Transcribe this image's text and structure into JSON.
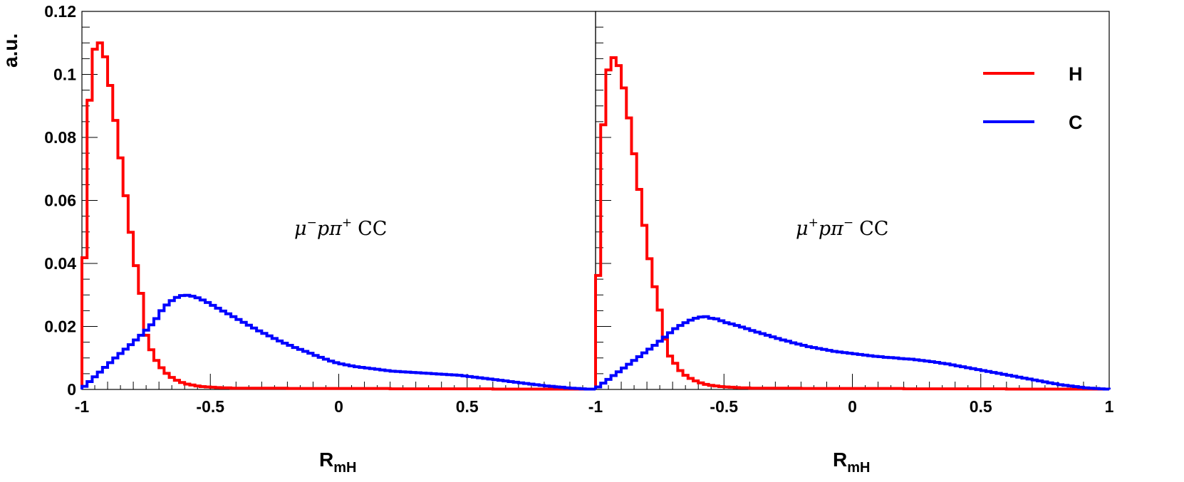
{
  "chart_data": [
    {
      "type": "histogram",
      "panel": "left",
      "annotation": {
        "mu": "μ",
        "mu_sup": "−",
        "p": "p",
        "pi": "π",
        "pi_sup": "+",
        "cc": "CC"
      },
      "xlabel": {
        "main": "R",
        "sub": "mH"
      },
      "ylabel": "a.u.",
      "xlim": [
        -1,
        1
      ],
      "ylim": [
        0,
        0.12
      ],
      "bins": 100,
      "xticks": [
        "-1",
        "-0.5",
        "0",
        "0.5"
      ],
      "yticks": [
        "0",
        "0.02",
        "0.04",
        "0.06",
        "0.08",
        "0.1",
        "0.12"
      ],
      "series": [
        {
          "name": "H",
          "color": "#ff0000",
          "values": [
            0.0418,
            0.0918,
            0.108,
            0.11,
            0.1056,
            0.0965,
            0.0854,
            0.0735,
            0.0615,
            0.0499,
            0.0393,
            0.0305,
            0.0172,
            0.0126,
            0.0092,
            0.0069,
            0.0051,
            0.0038,
            0.0029,
            0.0022,
            0.0017,
            0.0014,
            0.0011,
            0.0009,
            0.0008,
            0.0007,
            0.0006,
            0.0005,
            0.0005,
            0.0004,
            0.0004,
            0.0004,
            0.0004,
            0.0004,
            0.0004,
            0.0004,
            0.0004,
            0.0004,
            0.0004,
            0.0004,
            0.0003,
            0.0003,
            0.0003,
            0.0003,
            0.0003,
            0.0003,
            0.0003,
            0.0003,
            0.0003,
            0.0003,
            0.0003,
            0.0003,
            0.0003,
            0.0003,
            0.0003,
            0.0003,
            0.0003,
            0.0003,
            0.0003,
            0.0003,
            0.0002,
            0.0002,
            0.0002,
            0.0002,
            0.0002,
            0.0002,
            0.0002,
            0.0002,
            0.0002,
            0.0002,
            0.0002,
            0.0002,
            0.0002,
            0.0002,
            0.0002,
            0.0002,
            0.0002,
            0.0002,
            0.0002,
            0.0002,
            0.0001,
            0.0001,
            0.0001,
            0.0001,
            0.0001,
            0.0001,
            0.0001,
            0.0001,
            0.0001,
            0.0001,
            0.0001,
            0.0001,
            0.0001,
            0.0001,
            0.0001,
            0.0001,
            0.0001,
            0.0001,
            0.0001,
            0.0001
          ]
        },
        {
          "name": "C",
          "color": "#0000ff",
          "values": [
            0.001,
            0.0025,
            0.004,
            0.0055,
            0.007,
            0.0085,
            0.01,
            0.0114,
            0.0128,
            0.0142,
            0.0157,
            0.0172,
            0.0188,
            0.0205,
            0.0225,
            0.025,
            0.0268,
            0.0282,
            0.0292,
            0.0298,
            0.0299,
            0.0296,
            0.0291,
            0.0284,
            0.0276,
            0.0267,
            0.0258,
            0.0249,
            0.024,
            0.0231,
            0.0222,
            0.0213,
            0.0204,
            0.0195,
            0.0186,
            0.0178,
            0.017,
            0.0162,
            0.0154,
            0.0147,
            0.014,
            0.0133,
            0.0127,
            0.0121,
            0.0115,
            0.0108,
            0.0102,
            0.0096,
            0.009,
            0.0085,
            0.0081,
            0.0078,
            0.0075,
            0.0072,
            0.007,
            0.0068,
            0.0066,
            0.0064,
            0.0062,
            0.006,
            0.0058,
            0.0057,
            0.0056,
            0.0055,
            0.0054,
            0.0053,
            0.0052,
            0.0051,
            0.005,
            0.0049,
            0.0048,
            0.0047,
            0.0046,
            0.0045,
            0.0043,
            0.0041,
            0.0039,
            0.0037,
            0.0035,
            0.0033,
            0.0031,
            0.0029,
            0.0027,
            0.0025,
            0.0023,
            0.0021,
            0.0019,
            0.0017,
            0.0015,
            0.0013,
            0.0011,
            0.001,
            0.0008,
            0.0007,
            0.0005,
            0.0004,
            0.0003,
            0.0002,
            0.0001,
            0.0001
          ]
        }
      ]
    },
    {
      "type": "histogram",
      "panel": "right",
      "annotation": {
        "mu": "μ",
        "mu_sup": "+",
        "p": "p",
        "pi": "π",
        "pi_sup": "−",
        "cc": "CC"
      },
      "xlabel": {
        "main": "R",
        "sub": "mH"
      },
      "xlim": [
        -1,
        1
      ],
      "ylim": [
        0,
        0.12
      ],
      "bins": 100,
      "xticks": [
        "-1",
        "-0.5",
        "0",
        "0.5",
        "1"
      ],
      "legend": {
        "placement": "top-right",
        "entries": [
          "H",
          "C"
        ]
      },
      "series": [
        {
          "name": "H",
          "color": "#ff0000",
          "values": [
            0.0362,
            0.084,
            0.1014,
            0.1053,
            0.1028,
            0.0957,
            0.0862,
            0.0748,
            0.0635,
            0.0521,
            0.0415,
            0.0326,
            0.0252,
            0.016,
            0.0106,
            0.0083,
            0.006,
            0.0045,
            0.0035,
            0.0027,
            0.0021,
            0.0016,
            0.0013,
            0.0011,
            0.0009,
            0.0008,
            0.0007,
            0.0006,
            0.0005,
            0.0005,
            0.0004,
            0.0004,
            0.0004,
            0.0004,
            0.0004,
            0.0004,
            0.0004,
            0.0004,
            0.0004,
            0.0004,
            0.0003,
            0.0003,
            0.0003,
            0.0003,
            0.0003,
            0.0003,
            0.0003,
            0.0003,
            0.0003,
            0.0003,
            0.0003,
            0.0003,
            0.0003,
            0.0003,
            0.0003,
            0.0003,
            0.0003,
            0.0003,
            0.0003,
            0.0003,
            0.0002,
            0.0002,
            0.0002,
            0.0002,
            0.0002,
            0.0002,
            0.0002,
            0.0002,
            0.0002,
            0.0002,
            0.0002,
            0.0002,
            0.0002,
            0.0002,
            0.0002,
            0.0002,
            0.0002,
            0.0002,
            0.0002,
            0.0002,
            0.0001,
            0.0001,
            0.0001,
            0.0001,
            0.0001,
            0.0001,
            0.0001,
            0.0001,
            0.0001,
            0.0001,
            0.0001,
            0.0001,
            0.0001,
            0.0001,
            0.0001,
            0.0001,
            0.0001,
            0.0001,
            0.0001,
            0.0001
          ]
        },
        {
          "name": "C",
          "color": "#0000ff",
          "values": [
            0.0008,
            0.002,
            0.0032,
            0.0044,
            0.0056,
            0.0068,
            0.008,
            0.0092,
            0.0104,
            0.0116,
            0.0128,
            0.014,
            0.0153,
            0.0166,
            0.018,
            0.0193,
            0.0203,
            0.0212,
            0.022,
            0.0226,
            0.023,
            0.0231,
            0.0226,
            0.0224,
            0.0218,
            0.0212,
            0.0208,
            0.0203,
            0.0198,
            0.0193,
            0.0187,
            0.0182,
            0.0177,
            0.0172,
            0.0167,
            0.0162,
            0.0157,
            0.0153,
            0.0148,
            0.0144,
            0.014,
            0.0136,
            0.0133,
            0.013,
            0.0127,
            0.0124,
            0.0121,
            0.0119,
            0.0117,
            0.0115,
            0.0113,
            0.0111,
            0.0109,
            0.0107,
            0.0105,
            0.0104,
            0.0102,
            0.0101,
            0.01,
            0.0098,
            0.0097,
            0.0096,
            0.0094,
            0.0092,
            0.009,
            0.0088,
            0.0086,
            0.0083,
            0.0081,
            0.0078,
            0.0075,
            0.0072,
            0.0069,
            0.0066,
            0.0063,
            0.006,
            0.0057,
            0.0054,
            0.0051,
            0.0048,
            0.0045,
            0.0042,
            0.0039,
            0.0036,
            0.0033,
            0.003,
            0.0027,
            0.0024,
            0.0021,
            0.0018,
            0.0015,
            0.0013,
            0.0011,
            0.0009,
            0.0007,
            0.0005,
            0.0004,
            0.0003,
            0.0002,
            0.0001
          ]
        }
      ]
    }
  ]
}
